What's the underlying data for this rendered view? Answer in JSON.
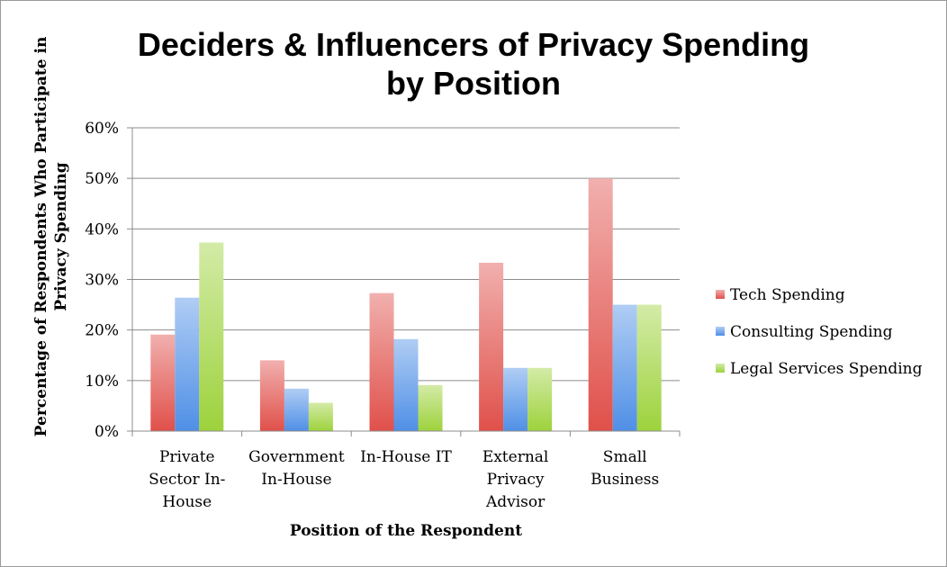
{
  "chart_data": {
    "type": "bar",
    "title": [
      "Deciders & Influencers of Privacy Spending",
      "by Position"
    ],
    "xlabel": "Position of the Respondent",
    "ylabel": [
      "Percentage of Respondents Who Participate in",
      "Privacy Spending"
    ],
    "ylim": [
      0,
      60
    ],
    "yticks": [
      "0%",
      "10%",
      "20%",
      "30%",
      "40%",
      "50%",
      "60%"
    ],
    "grid": true,
    "legend": "right",
    "categories": [
      [
        "Private",
        "Sector In-",
        "House"
      ],
      [
        "Government",
        "In-House"
      ],
      [
        "In-House IT"
      ],
      [
        "External",
        "Privacy",
        "Advisor"
      ],
      [
        "Small",
        "Business"
      ]
    ],
    "series": [
      {
        "name": "Tech Spending",
        "color": "#e0504a",
        "values": [
          19.1,
          14.0,
          27.3,
          33.3,
          50.0
        ]
      },
      {
        "name": "Consulting Spending",
        "color": "#4f8fe6",
        "values": [
          26.4,
          8.4,
          18.2,
          12.5,
          25.0
        ]
      },
      {
        "name": "Legal Services Spending",
        "color": "#9dd23c",
        "values": [
          37.3,
          5.6,
          9.1,
          12.5,
          25.0
        ]
      }
    ]
  }
}
